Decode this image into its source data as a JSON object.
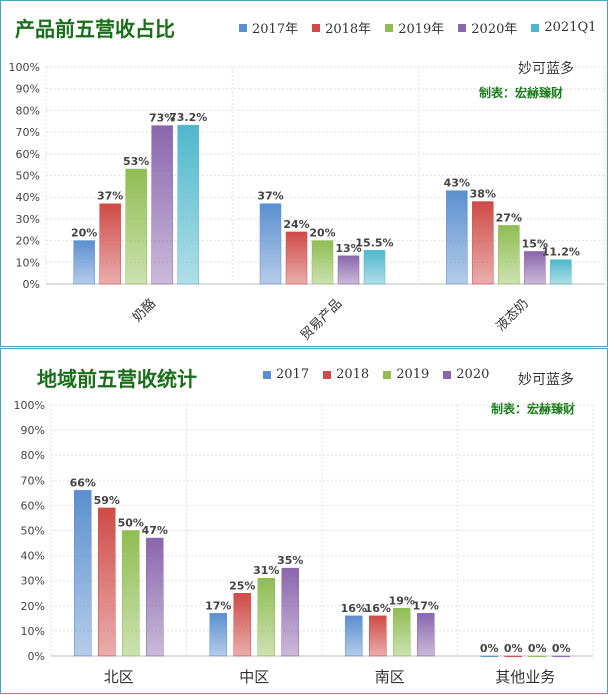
{
  "colors": {
    "s2017": "#5b8fd0",
    "s2018": "#cf4b47",
    "s2019": "#8fbd52",
    "s2020": "#8a66ad",
    "s2021": "#4fb7cc"
  },
  "chart_data": [
    {
      "type": "bar",
      "title": "产品前五营收占比",
      "brand": "妙可蓝多",
      "credit": "制表：宏赫臻财",
      "categories": [
        "奶酪",
        "贸易产品",
        "液态奶"
      ],
      "ylim": [
        0,
        100
      ],
      "yticks": [
        "0%",
        "10%",
        "20%",
        "30%",
        "40%",
        "50%",
        "60%",
        "70%",
        "80%",
        "90%",
        "100%"
      ],
      "legend_position": "top-right",
      "series": [
        {
          "name": "2017年",
          "values": [
            20,
            37,
            43
          ],
          "labels": [
            "20%",
            "37%",
            "43%"
          ]
        },
        {
          "name": "2018年",
          "values": [
            37,
            24,
            38
          ],
          "labels": [
            "37%",
            "24%",
            "38%"
          ]
        },
        {
          "name": "2019年",
          "values": [
            53,
            20,
            27
          ],
          "labels": [
            "53%",
            "20%",
            "27%"
          ]
        },
        {
          "name": "2020年",
          "values": [
            73,
            13,
            15
          ],
          "labels": [
            "73%",
            "13%",
            "15%"
          ]
        },
        {
          "name": "2021Q1",
          "values": [
            73.2,
            15.5,
            11.2
          ],
          "labels": [
            "73.2%",
            "15.5%",
            "11.2%"
          ]
        }
      ]
    },
    {
      "type": "bar",
      "title": "地域前五营收统计",
      "brand": "妙可蓝多",
      "credit": "制表：宏赫臻财",
      "categories": [
        "北区",
        "中区",
        "南区",
        "其他业务"
      ],
      "ylim": [
        0,
        100
      ],
      "yticks": [
        "0%",
        "10%",
        "20%",
        "30%",
        "40%",
        "50%",
        "60%",
        "70%",
        "80%",
        "90%",
        "100%"
      ],
      "legend_position": "top-center",
      "series": [
        {
          "name": "2017",
          "values": [
            66,
            17,
            16,
            0
          ],
          "labels": [
            "66%",
            "17%",
            "16%",
            "0%"
          ]
        },
        {
          "name": "2018",
          "values": [
            59,
            25,
            16,
            0
          ],
          "labels": [
            "59%",
            "25%",
            "16%",
            "0%"
          ]
        },
        {
          "name": "2019",
          "values": [
            50,
            31,
            19,
            0
          ],
          "labels": [
            "50%",
            "31%",
            "19%",
            "0%"
          ]
        },
        {
          "name": "2020",
          "values": [
            47,
            35,
            17,
            0
          ],
          "labels": [
            "47%",
            "35%",
            "17%",
            "0%"
          ]
        }
      ]
    }
  ]
}
